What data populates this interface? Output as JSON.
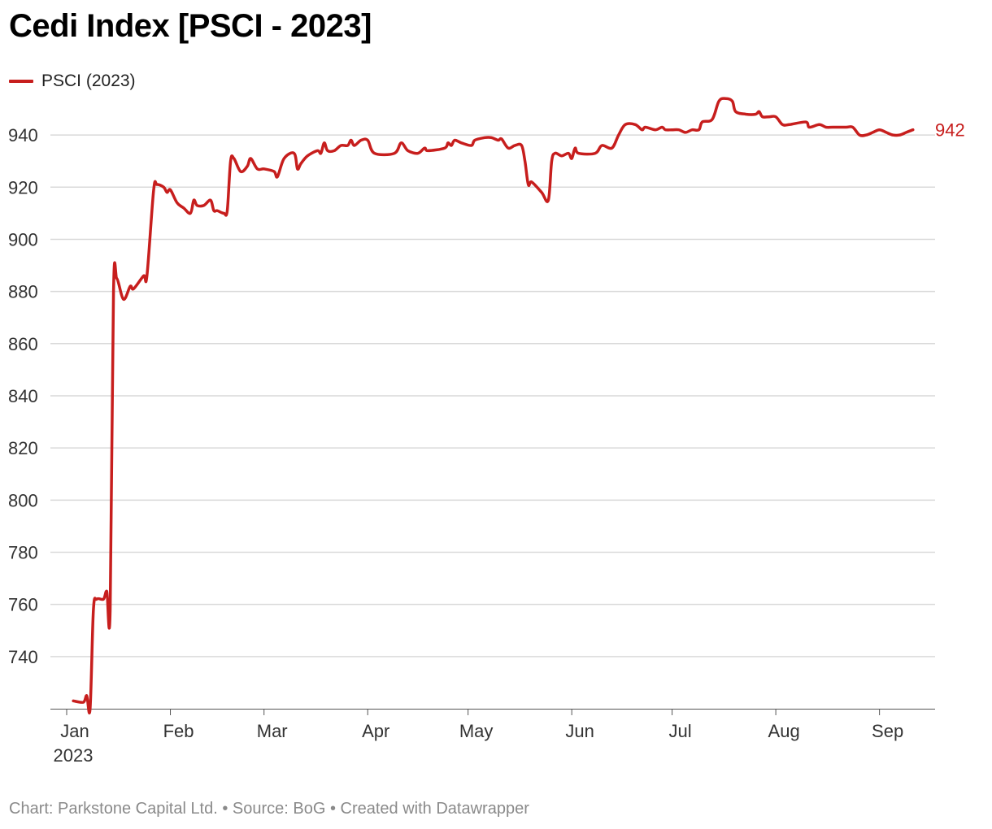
{
  "title": "Cedi Index [PSCI - 2023]",
  "footer": "Chart: Parkstone Capital Ltd. • Source: BoG • Created with Datawrapper",
  "colors": {
    "series": "#c71e1d",
    "grid": "#d9d9d9",
    "text": "#333333"
  },
  "chart_data": {
    "type": "line",
    "title": "Cedi Index [PSCI - 2023]",
    "xlabel": "",
    "ylabel": "",
    "ylim": [
      720,
      955
    ],
    "xlim": [
      "2023-01-01",
      "2023-09-13"
    ],
    "grid": true,
    "legend": "top-left",
    "y_ticks": [
      740,
      760,
      780,
      800,
      820,
      840,
      860,
      880,
      900,
      920,
      940
    ],
    "x_ticks": [
      {
        "date": "2023-01-01",
        "label": "Jan",
        "sublabel": "2023"
      },
      {
        "date": "2023-02-01",
        "label": "Feb",
        "sublabel": ""
      },
      {
        "date": "2023-03-01",
        "label": "Mar",
        "sublabel": ""
      },
      {
        "date": "2023-04-01",
        "label": "Apr",
        "sublabel": ""
      },
      {
        "date": "2023-05-01",
        "label": "May",
        "sublabel": ""
      },
      {
        "date": "2023-06-01",
        "label": "Jun",
        "sublabel": ""
      },
      {
        "date": "2023-07-01",
        "label": "Jul",
        "sublabel": ""
      },
      {
        "date": "2023-08-01",
        "label": "Aug",
        "sublabel": ""
      },
      {
        "date": "2023-09-01",
        "label": "Sep",
        "sublabel": ""
      }
    ],
    "end_label": "942",
    "series": [
      {
        "name": "PSCI (2023)",
        "points": [
          [
            "2023-01-03",
            723
          ],
          [
            "2023-01-06",
            722.5
          ],
          [
            "2023-01-07",
            725
          ],
          [
            "2023-01-08",
            720
          ],
          [
            "2023-01-09",
            758
          ],
          [
            "2023-01-10",
            762
          ],
          [
            "2023-01-12",
            762
          ],
          [
            "2023-01-13",
            765
          ],
          [
            "2023-01-14",
            758
          ],
          [
            "2023-01-15",
            880
          ],
          [
            "2023-01-16",
            885
          ],
          [
            "2023-01-18",
            877
          ],
          [
            "2023-01-20",
            882
          ],
          [
            "2023-01-21",
            881
          ],
          [
            "2023-01-24",
            886
          ],
          [
            "2023-01-25",
            886
          ],
          [
            "2023-01-27",
            919
          ],
          [
            "2023-01-28",
            921
          ],
          [
            "2023-01-30",
            920
          ],
          [
            "2023-01-31",
            918
          ],
          [
            "2023-02-01",
            919
          ],
          [
            "2023-02-03",
            914
          ],
          [
            "2023-02-05",
            912
          ],
          [
            "2023-02-07",
            910
          ],
          [
            "2023-02-08",
            915
          ],
          [
            "2023-02-09",
            913
          ],
          [
            "2023-02-11",
            913
          ],
          [
            "2023-02-13",
            915
          ],
          [
            "2023-02-14",
            911
          ],
          [
            "2023-02-15",
            911
          ],
          [
            "2023-02-17",
            910
          ],
          [
            "2023-02-18",
            911
          ],
          [
            "2023-02-19",
            930
          ],
          [
            "2023-02-20",
            931
          ],
          [
            "2023-02-22",
            926
          ],
          [
            "2023-02-24",
            928
          ],
          [
            "2023-02-25",
            931
          ],
          [
            "2023-02-27",
            927
          ],
          [
            "2023-03-01",
            927
          ],
          [
            "2023-03-04",
            926
          ],
          [
            "2023-03-05",
            924
          ],
          [
            "2023-03-07",
            931
          ],
          [
            "2023-03-10",
            933
          ],
          [
            "2023-03-11",
            927
          ],
          [
            "2023-03-12",
            929
          ],
          [
            "2023-03-14",
            932
          ],
          [
            "2023-03-17",
            934
          ],
          [
            "2023-03-18",
            933
          ],
          [
            "2023-03-19",
            937
          ],
          [
            "2023-03-20",
            934
          ],
          [
            "2023-03-22",
            934
          ],
          [
            "2023-03-24",
            936
          ],
          [
            "2023-03-26",
            936
          ],
          [
            "2023-03-27",
            938
          ],
          [
            "2023-03-28",
            936
          ],
          [
            "2023-03-30",
            938
          ],
          [
            "2023-04-01",
            938
          ],
          [
            "2023-04-03",
            933
          ],
          [
            "2023-04-09",
            933
          ],
          [
            "2023-04-11",
            937
          ],
          [
            "2023-04-13",
            934
          ],
          [
            "2023-04-16",
            933
          ],
          [
            "2023-04-18",
            935
          ],
          [
            "2023-04-19",
            934
          ],
          [
            "2023-04-24",
            935
          ],
          [
            "2023-04-25",
            937
          ],
          [
            "2023-04-26",
            936
          ],
          [
            "2023-04-27",
            938
          ],
          [
            "2023-04-29",
            937
          ],
          [
            "2023-05-02",
            936
          ],
          [
            "2023-05-03",
            938
          ],
          [
            "2023-05-06",
            939
          ],
          [
            "2023-05-08",
            939
          ],
          [
            "2023-05-10",
            938
          ],
          [
            "2023-05-11",
            938.5
          ],
          [
            "2023-05-13",
            935
          ],
          [
            "2023-05-15",
            936
          ],
          [
            "2023-05-17",
            936
          ],
          [
            "2023-05-18",
            930
          ],
          [
            "2023-05-19",
            921
          ],
          [
            "2023-05-20",
            922
          ],
          [
            "2023-05-23",
            918
          ],
          [
            "2023-05-25",
            915
          ],
          [
            "2023-05-26",
            930
          ],
          [
            "2023-05-27",
            933
          ],
          [
            "2023-05-29",
            932
          ],
          [
            "2023-05-31",
            933
          ],
          [
            "2023-06-01",
            931
          ],
          [
            "2023-06-02",
            935
          ],
          [
            "2023-06-03",
            933
          ],
          [
            "2023-06-08",
            933
          ],
          [
            "2023-06-10",
            936
          ],
          [
            "2023-06-13",
            935
          ],
          [
            "2023-06-15",
            940
          ],
          [
            "2023-06-17",
            944
          ],
          [
            "2023-06-20",
            944
          ],
          [
            "2023-06-22",
            942
          ],
          [
            "2023-06-23",
            943
          ],
          [
            "2023-06-26",
            942
          ],
          [
            "2023-06-28",
            943
          ],
          [
            "2023-06-29",
            942
          ],
          [
            "2023-07-01",
            942
          ],
          [
            "2023-07-03",
            942
          ],
          [
            "2023-07-05",
            941
          ],
          [
            "2023-07-07",
            942
          ],
          [
            "2023-07-09",
            942
          ],
          [
            "2023-07-10",
            945
          ],
          [
            "2023-07-13",
            946
          ],
          [
            "2023-07-15",
            953
          ],
          [
            "2023-07-17",
            954
          ],
          [
            "2023-07-19",
            953
          ],
          [
            "2023-07-20",
            949
          ],
          [
            "2023-07-23",
            948
          ],
          [
            "2023-07-26",
            948
          ],
          [
            "2023-07-27",
            949
          ],
          [
            "2023-07-28",
            947
          ],
          [
            "2023-07-30",
            947
          ],
          [
            "2023-08-01",
            947
          ],
          [
            "2023-08-03",
            944
          ],
          [
            "2023-08-05",
            944
          ],
          [
            "2023-08-10",
            945
          ],
          [
            "2023-08-11",
            943
          ],
          [
            "2023-08-14",
            944
          ],
          [
            "2023-08-16",
            943
          ],
          [
            "2023-08-18",
            943
          ],
          [
            "2023-08-22",
            943
          ],
          [
            "2023-08-24",
            943
          ],
          [
            "2023-08-26",
            940
          ],
          [
            "2023-08-28",
            940
          ],
          [
            "2023-08-30",
            941
          ],
          [
            "2023-09-01",
            942
          ],
          [
            "2023-09-03",
            941
          ],
          [
            "2023-09-05",
            940
          ],
          [
            "2023-09-07",
            940
          ],
          [
            "2023-09-09",
            941
          ],
          [
            "2023-09-11",
            942
          ]
        ]
      }
    ]
  }
}
